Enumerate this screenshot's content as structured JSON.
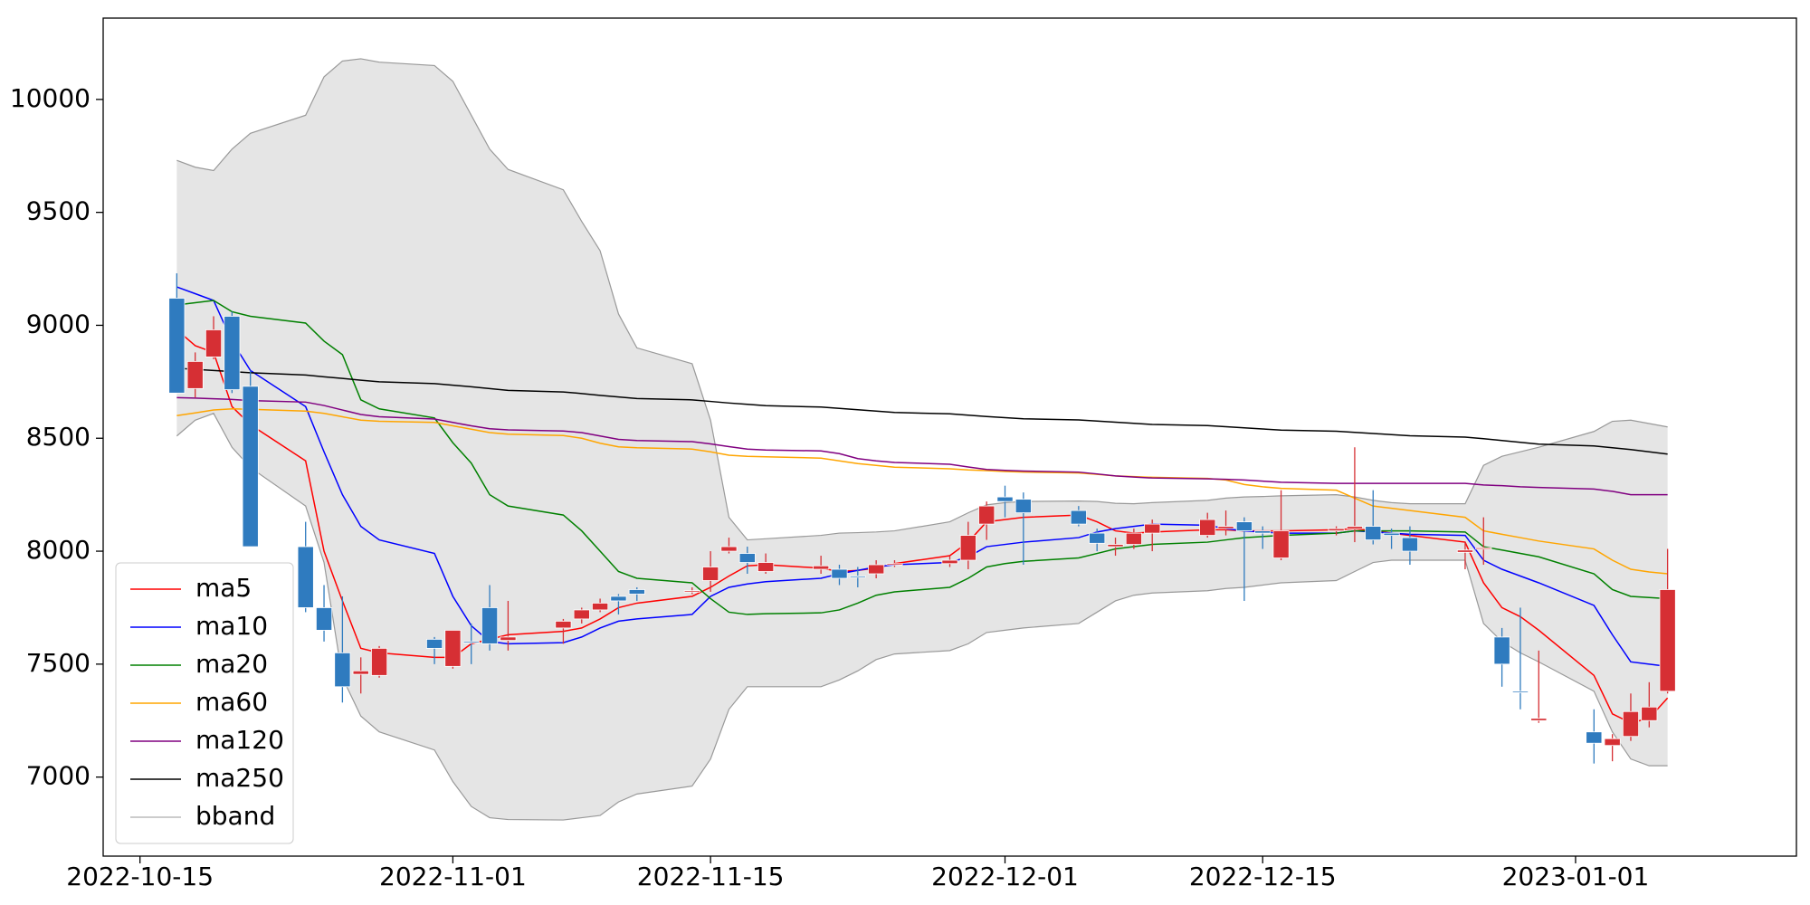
{
  "chart_data": {
    "type": "candlestick",
    "x": [
      "2022-10-17",
      "2022-10-18",
      "2022-10-19",
      "2022-10-20",
      "2022-10-21",
      "2022-10-24",
      "2022-10-25",
      "2022-10-26",
      "2022-10-27",
      "2022-10-28",
      "2022-10-31",
      "2022-11-01",
      "2022-11-02",
      "2022-11-03",
      "2022-11-04",
      "2022-11-07",
      "2022-11-08",
      "2022-11-09",
      "2022-11-10",
      "2022-11-11",
      "2022-11-14",
      "2022-11-15",
      "2022-11-16",
      "2022-11-17",
      "2022-11-18",
      "2022-11-21",
      "2022-11-22",
      "2022-11-23",
      "2022-11-24",
      "2022-11-25",
      "2022-11-28",
      "2022-11-29",
      "2022-11-30",
      "2022-12-01",
      "2022-12-02",
      "2022-12-05",
      "2022-12-06",
      "2022-12-07",
      "2022-12-08",
      "2022-12-09",
      "2022-12-12",
      "2022-12-13",
      "2022-12-14",
      "2022-12-15",
      "2022-12-16",
      "2022-12-19",
      "2022-12-20",
      "2022-12-21",
      "2022-12-22",
      "2022-12-23",
      "2022-12-26",
      "2022-12-27",
      "2022-12-28",
      "2022-12-29",
      "2022-12-30",
      "2023-01-02",
      "2023-01-03",
      "2023-01-04",
      "2023-01-05",
      "2023-01-06"
    ],
    "open": [
      9120,
      8720,
      8860,
      9040,
      8730,
      8020,
      7750,
      7550,
      7455,
      7450,
      7610,
      7490,
      7600,
      7750,
      7605,
      7660,
      7700,
      7740,
      7800,
      7830,
      7820,
      7870,
      8000,
      7990,
      7910,
      7920,
      7920,
      7890,
      7900,
      7940,
      7945,
      7960,
      8120,
      8240,
      8230,
      8180,
      8080,
      8020,
      8030,
      8080,
      8070,
      8100,
      8130,
      8090,
      7970,
      8090,
      8100,
      8110,
      8080,
      8060,
      7995,
      8010,
      7620,
      7380,
      7250,
      7200,
      7140,
      7180,
      7250,
      7380
    ],
    "high": [
      9230,
      8880,
      9040,
      9060,
      8800,
      8130,
      7850,
      7800,
      7530,
      7580,
      7620,
      7650,
      7680,
      7850,
      7780,
      7700,
      7750,
      7790,
      7810,
      7840,
      7840,
      8000,
      8060,
      8020,
      7990,
      7980,
      7940,
      7930,
      7960,
      7960,
      7980,
      8130,
      8220,
      8290,
      8260,
      8200,
      8100,
      8060,
      8100,
      8140,
      8170,
      8180,
      8150,
      8110,
      8270,
      8110,
      8460,
      8270,
      8100,
      8110,
      8040,
      8150,
      7660,
      7750,
      7560,
      7300,
      7190,
      7370,
      7420,
      8010
    ],
    "low": [
      8700,
      8680,
      8850,
      8700,
      8020,
      7730,
      7600,
      7330,
      7370,
      7440,
      7500,
      7480,
      7500,
      7560,
      7560,
      7590,
      7680,
      7730,
      7720,
      7780,
      7810,
      7820,
      7990,
      7900,
      7900,
      7900,
      7850,
      7840,
      7880,
      7930,
      7930,
      7920,
      8050,
      8150,
      7940,
      8110,
      8000,
      7980,
      8010,
      8000,
      8060,
      8070,
      7780,
      8010,
      7960,
      8070,
      8040,
      8030,
      8010,
      7940,
      7920,
      7940,
      7400,
      7300,
      7240,
      7060,
      7070,
      7160,
      7220,
      7370
    ],
    "close": [
      8700,
      8840,
      8980,
      8715,
      8020,
      7750,
      7650,
      7400,
      7470,
      7570,
      7570,
      7650,
      7595,
      7590,
      7620,
      7690,
      7740,
      7770,
      7780,
      7810,
      7825,
      7930,
      8020,
      7950,
      7950,
      7935,
      7880,
      7885,
      7940,
      7945,
      7960,
      8070,
      8200,
      8220,
      8170,
      8120,
      8035,
      8030,
      8080,
      8120,
      8140,
      8110,
      8090,
      8080,
      8090,
      8100,
      8110,
      8050,
      8070,
      8000,
      8005,
      8015,
      7500,
      7375,
      7260,
      7150,
      7170,
      7290,
      7310,
      7830
    ],
    "up_color": "#d62f34",
    "down_color": "#2f7bbf",
    "series": [
      {
        "name": "ma5",
        "color": "#ff0000",
        "values": [
          8980,
          8910,
          8880,
          8640,
          8560,
          8400,
          8000,
          7780,
          7570,
          7550,
          7530,
          7530,
          7590,
          7610,
          7630,
          7645,
          7660,
          7700,
          7750,
          7770,
          7800,
          7840,
          7890,
          7935,
          7940,
          7925,
          7910,
          7915,
          7925,
          7945,
          7980,
          8040,
          8130,
          8140,
          8150,
          8160,
          8130,
          8090,
          8080,
          8085,
          8095,
          8095,
          8090,
          8090,
          8090,
          8095,
          8100,
          8090,
          8080,
          8070,
          8040,
          7860,
          7750,
          7710,
          7650,
          7450,
          7280,
          7240,
          7260,
          7350
        ]
      },
      {
        "name": "ma10",
        "color": "#0000ff",
        "values": [
          9170,
          9140,
          9110,
          8930,
          8800,
          8640,
          8440,
          8250,
          8110,
          8050,
          7990,
          7800,
          7670,
          7600,
          7590,
          7595,
          7620,
          7660,
          7690,
          7700,
          7720,
          7800,
          7840,
          7855,
          7865,
          7880,
          7900,
          7915,
          7930,
          7940,
          7950,
          7975,
          8020,
          8030,
          8040,
          8060,
          8085,
          8100,
          8110,
          8120,
          8115,
          8100,
          8090,
          8085,
          8080,
          8080,
          8090,
          8085,
          8080,
          8075,
          8070,
          7960,
          7920,
          7890,
          7860,
          7760,
          7630,
          7510,
          7500,
          7490
        ]
      },
      {
        "name": "ma20",
        "color": "#008000",
        "values": [
          9090,
          9100,
          9110,
          9060,
          9040,
          9010,
          8930,
          8870,
          8670,
          8630,
          8590,
          8480,
          8390,
          8250,
          8200,
          8160,
          8090,
          8000,
          7910,
          7880,
          7860,
          7790,
          7730,
          7720,
          7723,
          7727,
          7740,
          7770,
          7805,
          7820,
          7840,
          7880,
          7930,
          7945,
          7955,
          7970,
          7990,
          8010,
          8020,
          8030,
          8040,
          8050,
          8060,
          8065,
          8070,
          8080,
          8090,
          8090,
          8090,
          8090,
          8085,
          8020,
          8005,
          7990,
          7975,
          7900,
          7830,
          7800,
          7795,
          7790
        ]
      },
      {
        "name": "ma60",
        "color": "#ffa500",
        "values": [
          8600,
          8612,
          8625,
          8630,
          8628,
          8620,
          8610,
          8595,
          8580,
          8575,
          8570,
          8555,
          8540,
          8525,
          8518,
          8512,
          8500,
          8478,
          8462,
          8458,
          8452,
          8440,
          8425,
          8420,
          8418,
          8412,
          8400,
          8388,
          8380,
          8372,
          8365,
          8360,
          8357,
          8353,
          8350,
          8346,
          8340,
          8333,
          8330,
          8327,
          8322,
          8315,
          8295,
          8285,
          8278,
          8270,
          8235,
          8200,
          8190,
          8180,
          8150,
          8090,
          8075,
          8060,
          8045,
          8010,
          7960,
          7920,
          7908,
          7900
        ]
      },
      {
        "name": "ma120",
        "color": "#800080",
        "values": [
          8680,
          8678,
          8675,
          8672,
          8667,
          8660,
          8645,
          8625,
          8605,
          8595,
          8585,
          8570,
          8555,
          8542,
          8537,
          8532,
          8525,
          8510,
          8495,
          8490,
          8485,
          8475,
          8463,
          8452,
          8448,
          8444,
          8432,
          8410,
          8400,
          8393,
          8385,
          8373,
          8362,
          8358,
          8355,
          8350,
          8342,
          8333,
          8328,
          8324,
          8320,
          8318,
          8315,
          8310,
          8305,
          8300,
          8300,
          8300,
          8300,
          8300,
          8300,
          8293,
          8290,
          8285,
          8282,
          8275,
          8265,
          8250,
          8250,
          8250
        ]
      },
      {
        "name": "ma250",
        "color": "#000000",
        "values": [
          8810,
          8805,
          8800,
          8795,
          8790,
          8780,
          8772,
          8765,
          8757,
          8750,
          8742,
          8735,
          8728,
          8720,
          8712,
          8705,
          8698,
          8690,
          8683,
          8676,
          8670,
          8663,
          8656,
          8650,
          8644,
          8638,
          8632,
          8626,
          8620,
          8614,
          8608,
          8602,
          8596,
          8591,
          8586,
          8581,
          8576,
          8571,
          8566,
          8561,
          8556,
          8551,
          8546,
          8541,
          8536,
          8531,
          8526,
          8521,
          8516,
          8511,
          8505,
          8498,
          8490,
          8482,
          8474,
          8466,
          8458,
          8450,
          8440,
          8430
        ]
      }
    ],
    "band": {
      "name": "bband",
      "color": "#999999",
      "fill": "#e5e5e5",
      "upper": [
        9730,
        9700,
        9685,
        9780,
        9850,
        9930,
        10100,
        10170,
        10180,
        10165,
        10150,
        10080,
        9930,
        9780,
        9690,
        9600,
        9460,
        9330,
        9050,
        8900,
        8830,
        8580,
        8150,
        8050,
        8055,
        8070,
        8080,
        8082,
        8085,
        8090,
        8130,
        8170,
        8205,
        8215,
        8220,
        8222,
        8220,
        8212,
        8210,
        8215,
        8225,
        8235,
        8240,
        8242,
        8245,
        8250,
        8240,
        8225,
        8215,
        8210,
        8210,
        8380,
        8420,
        8440,
        8460,
        8530,
        8575,
        8580,
        8565,
        8550
      ],
      "lower": [
        8510,
        8580,
        8610,
        8460,
        8370,
        8200,
        7950,
        7440,
        7270,
        7200,
        7120,
        6980,
        6870,
        6820,
        6812,
        6810,
        6820,
        6830,
        6890,
        6925,
        6960,
        7080,
        7300,
        7400,
        7400,
        7400,
        7430,
        7470,
        7520,
        7545,
        7560,
        7590,
        7640,
        7650,
        7660,
        7680,
        7730,
        7780,
        7805,
        7815,
        7825,
        7835,
        7840,
        7850,
        7860,
        7870,
        7910,
        7950,
        7960,
        7960,
        7960,
        7680,
        7600,
        7550,
        7510,
        7380,
        7200,
        7080,
        7050,
        7050
      ]
    },
    "xlim": [
      "2022-10-13",
      "2023-01-13"
    ],
    "xticks": [
      "2022-10-15",
      "2022-11-01",
      "2022-11-15",
      "2022-12-01",
      "2022-12-15",
      "2023-01-01"
    ],
    "ylim": [
      6650,
      10360
    ],
    "yticks": [
      7000,
      7500,
      8000,
      8500,
      9000,
      9500,
      10000
    ],
    "legend": "lower left"
  }
}
